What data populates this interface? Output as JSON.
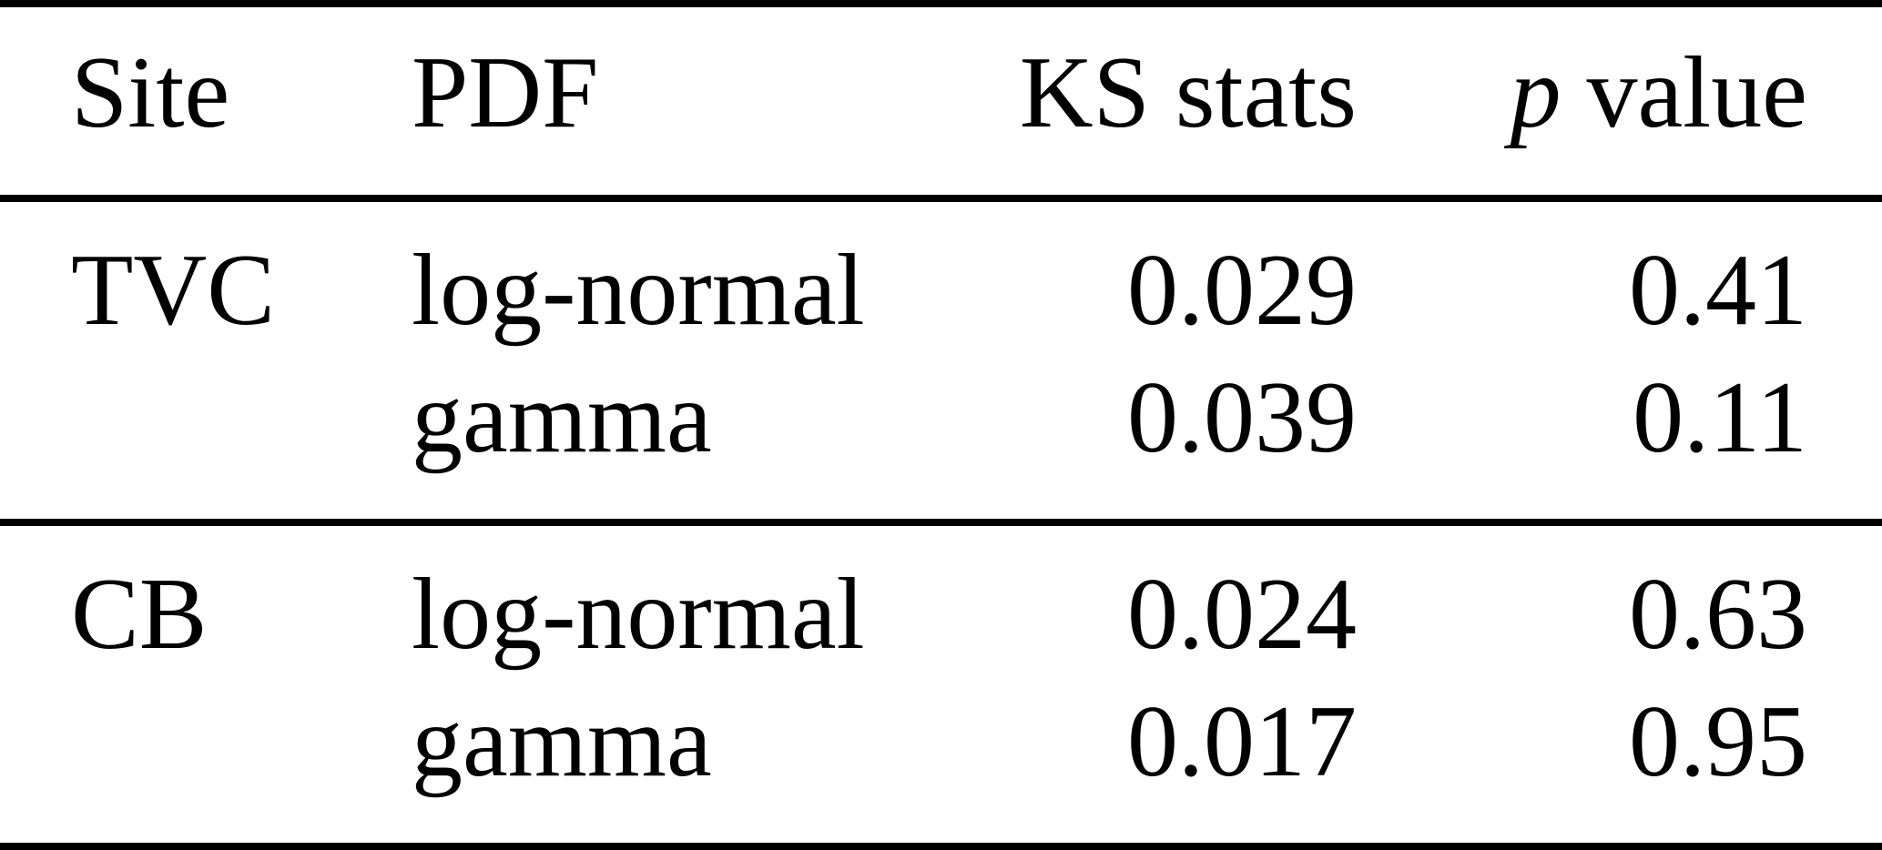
{
  "table": {
    "header": {
      "site": "Site",
      "pdf": "PDF",
      "ks_stats": "KS stats",
      "p_symbol": "p",
      "p_rest": " value"
    },
    "groups": [
      {
        "site": "TVC",
        "rows": [
          {
            "pdf": "log-normal",
            "ks_stat": "0.029",
            "p_value": "0.41"
          },
          {
            "pdf": "gamma",
            "ks_stat": "0.039",
            "p_value": "0.11"
          }
        ]
      },
      {
        "site": "CB",
        "rows": [
          {
            "pdf": "log-normal",
            "ks_stat": "0.024",
            "p_value": "0.63"
          },
          {
            "pdf": "gamma",
            "ks_stat": "0.017",
            "p_value": "0.95"
          }
        ]
      }
    ]
  },
  "colors": {
    "text": "#000000",
    "background": "#ffffff",
    "rule": "#000000"
  }
}
